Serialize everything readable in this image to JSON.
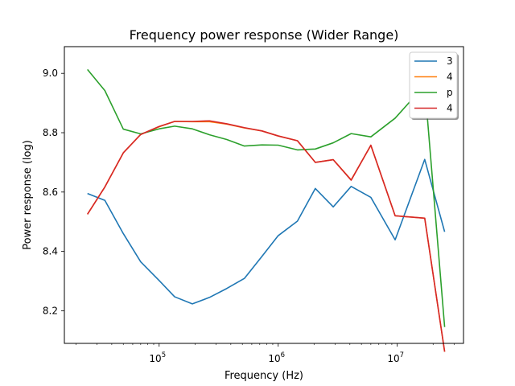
{
  "chart_data": {
    "type": "line",
    "title": "Frequency power response (Wider Range)",
    "xlabel": "Frequency (Hz)",
    "ylabel": "Power response (log)",
    "x_scale": "log",
    "xlim": [
      16000,
      36000000
    ],
    "ylim": [
      8.09,
      9.09
    ],
    "x_major_ticks": [
      {
        "value": 100000,
        "base": "10",
        "exp": "5"
      },
      {
        "value": 1000000,
        "base": "10",
        "exp": "6"
      },
      {
        "value": 10000000,
        "base": "10",
        "exp": "7"
      }
    ],
    "y_ticks": [
      {
        "value": 8.2,
        "label": "8.2"
      },
      {
        "value": 8.4,
        "label": "8.4"
      },
      {
        "value": 8.6,
        "label": "8.6"
      },
      {
        "value": 8.8,
        "label": "8.8"
      },
      {
        "value": 9.0,
        "label": "9.0"
      }
    ],
    "legend_position": "top-right",
    "x": [
      25000,
      35000,
      50000,
      70000,
      100000,
      135000,
      190000,
      265000,
      370000,
      520000,
      730000,
      1000000,
      1450000,
      2050000,
      2900000,
      4100000,
      6000000,
      9600000,
      17000000,
      25000000
    ],
    "series": [
      {
        "name": "3",
        "color": "#1f77b4",
        "values": [
          8.595,
          8.572,
          8.46,
          8.365,
          8.302,
          8.247,
          8.223,
          8.245,
          8.275,
          8.309,
          8.383,
          8.453,
          8.502,
          8.612,
          8.55,
          8.619,
          8.582,
          8.439,
          8.71,
          8.466
        ]
      },
      {
        "name": "4",
        "color": "#ff7f0e",
        "values": [
          8.525,
          8.617,
          8.732,
          8.794,
          8.82,
          8.838,
          8.837,
          8.837,
          8.829,
          8.816,
          8.806,
          8.789,
          8.773,
          8.7,
          8.709,
          8.641,
          8.757,
          8.52,
          8.512,
          8.062
        ]
      },
      {
        "name": "p",
        "color": "#2ca02c",
        "values": [
          9.013,
          8.942,
          8.812,
          8.796,
          8.813,
          8.822,
          8.813,
          8.793,
          8.777,
          8.755,
          8.759,
          8.758,
          8.742,
          8.745,
          8.766,
          8.797,
          8.786,
          8.849,
          8.96,
          8.145
        ]
      },
      {
        "name": "4",
        "color": "#d62728",
        "values": [
          8.525,
          8.617,
          8.732,
          8.794,
          8.821,
          8.838,
          8.838,
          8.84,
          8.83,
          8.817,
          8.806,
          8.789,
          8.773,
          8.7,
          8.709,
          8.64,
          8.758,
          8.52,
          8.512,
          8.062
        ]
      }
    ]
  }
}
